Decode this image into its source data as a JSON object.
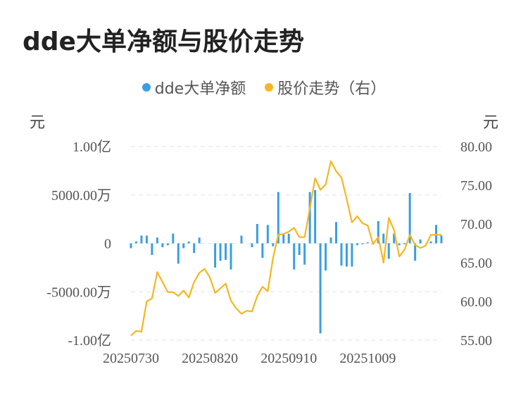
{
  "title": "dde大单净额与股价走势",
  "legend": {
    "bar_label": "dde大单净额",
    "line_label": "股价走势（右）"
  },
  "units": {
    "left": "元",
    "right": "元"
  },
  "colors": {
    "bar": "#3a9ee4",
    "line": "#f5b720",
    "grid": "#e3e3e3"
  },
  "chart_data": {
    "type": "bar+line",
    "y_left": {
      "ylim": [
        -100000000,
        100000000
      ],
      "ticks": [
        100000000,
        50000000,
        0,
        -50000000,
        -100000000
      ],
      "tick_labels": [
        "1.00亿",
        "5000.00万",
        "0",
        "-5000.00万",
        "-1.00亿"
      ]
    },
    "y_right": {
      "ylim": [
        55,
        80
      ],
      "ticks": [
        80,
        75,
        70,
        65,
        60,
        55
      ],
      "tick_labels": [
        "80.00",
        "75.00",
        "70.00",
        "65.00",
        "60.00",
        "55.00"
      ]
    },
    "x_tick_labels": [
      {
        "index": 0,
        "label": "20250730"
      },
      {
        "index": 15,
        "label": "20250820"
      },
      {
        "index": 30,
        "label": "20250910"
      },
      {
        "index": 45,
        "label": "20251009"
      }
    ],
    "series": [
      {
        "name": "dde大单净额",
        "kind": "bar",
        "values": [
          -5000000,
          2000000,
          8000000,
          8000000,
          -12000000,
          6000000,
          -4000000,
          -2000000,
          10000000,
          -21000000,
          -5000000,
          2000000,
          -10000000,
          6000000,
          0,
          0,
          -25000000,
          -18000000,
          -17000000,
          -27000000,
          0,
          8000000,
          0,
          -4000000,
          20000000,
          -15000000,
          19000000,
          -3000000,
          53000000,
          10000000,
          10000000,
          -27000000,
          -12000000,
          -22000000,
          53000000,
          55000000,
          -93000000,
          -28000000,
          6000000,
          22000000,
          -23000000,
          -24000000,
          -24000000,
          -2000000,
          -1000000,
          1000000,
          -1000000,
          23000000,
          10000000,
          -16000000,
          10000000,
          -2000000,
          -1000000,
          52000000,
          -18000000,
          4000000,
          0,
          2000000,
          19000000,
          8000000
        ]
      },
      {
        "name": "股价走势（右）",
        "kind": "line",
        "values": [
          55.6,
          56.2,
          56.1,
          60.0,
          60.4,
          63.8,
          62.5,
          61.2,
          61.2,
          60.7,
          61.4,
          60.5,
          62.5,
          63.7,
          64.2,
          63.1,
          61.1,
          61.7,
          62.3,
          60.1,
          59.1,
          58.4,
          58.8,
          58.7,
          60.7,
          61.9,
          61.3,
          65.6,
          68.6,
          68.7,
          69.0,
          69.5,
          68.3,
          68.3,
          72.0,
          75.9,
          74.4,
          75.1,
          78.1,
          76.8,
          76.0,
          73.2,
          70.2,
          71.0,
          70.1,
          69.8,
          67.4,
          68.3,
          65.0,
          70.8,
          69.2,
          65.8,
          66.7,
          68.6,
          67.3,
          66.9,
          67.2,
          68.6,
          68.6,
          68.6
        ]
      }
    ]
  }
}
